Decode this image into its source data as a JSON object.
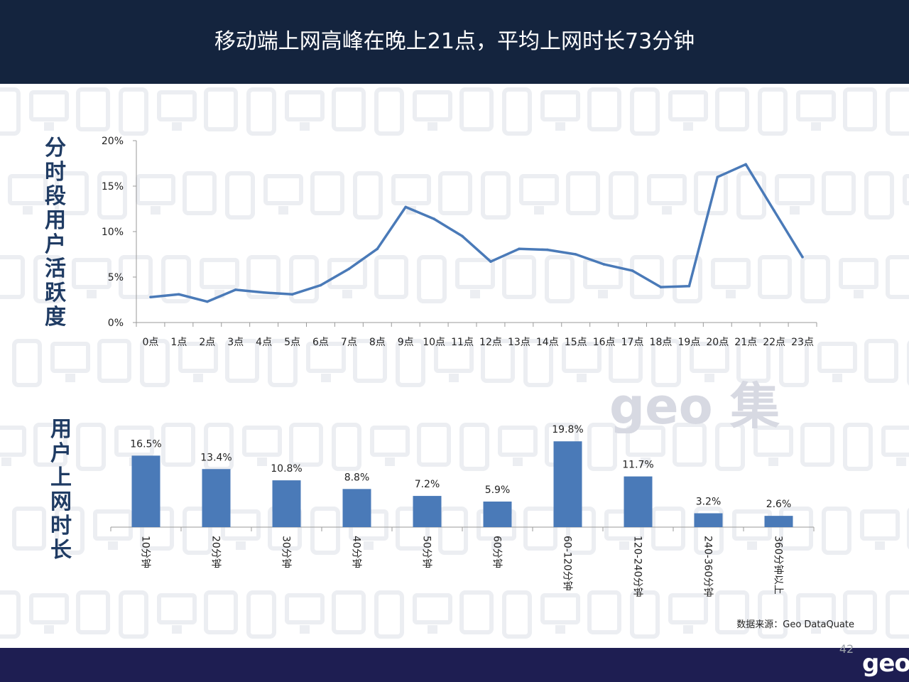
{
  "header": {
    "title": "移动端上网高峰在晚上21点，平均上网时长73分钟"
  },
  "line_section": {
    "title": "分时段用户活跃度"
  },
  "bar_section": {
    "title": "用户上网时长"
  },
  "source": "数据来源：Geo  DataQuate",
  "page_number": "42",
  "logo_text": "geo",
  "watermark_text": "geo 集奥",
  "colors": {
    "header_bg": "#14243e",
    "footer_bg": "#1e1e52",
    "series": "#4a7ab8",
    "title": "#1f3b63"
  },
  "chart_data": [
    {
      "type": "line",
      "categories": [
        "0点",
        "1点",
        "2点",
        "3点",
        "4点",
        "5点",
        "6点",
        "7点",
        "8点",
        "9点",
        "10点",
        "11点",
        "12点",
        "13点",
        "14点",
        "15点",
        "16点",
        "17点",
        "18点",
        "19点",
        "20点",
        "21点",
        "22点",
        "23点"
      ],
      "values": [
        2.8,
        3.1,
        2.3,
        3.6,
        3.3,
        3.1,
        4.1,
        5.9,
        8.1,
        12.7,
        11.4,
        9.5,
        6.7,
        8.1,
        8.0,
        7.5,
        6.4,
        5.7,
        3.9,
        4.0,
        16.0,
        17.4,
        12.3,
        7.2
      ],
      "ylim": [
        0,
        20
      ],
      "yticks": [
        "0%",
        "5%",
        "10%",
        "15%",
        "20%"
      ],
      "ytick_values": [
        0,
        5,
        10,
        15,
        20
      ]
    },
    {
      "type": "bar",
      "categories": [
        "10分钟",
        "20分钟",
        "30分钟",
        "40分钟",
        "50分钟",
        "60分钟",
        "60-120分钟",
        "120-240分钟",
        "240-360分钟",
        "360分钟以上"
      ],
      "values": [
        16.5,
        13.4,
        10.8,
        8.8,
        7.2,
        5.9,
        19.8,
        11.7,
        3.2,
        2.6
      ],
      "labels": [
        "16.5%",
        "13.4%",
        "10.8%",
        "8.8%",
        "7.2%",
        "5.9%",
        "19.8%",
        "11.7%",
        "3.2%",
        "2.6%"
      ],
      "ylim": [
        0,
        20
      ]
    }
  ]
}
